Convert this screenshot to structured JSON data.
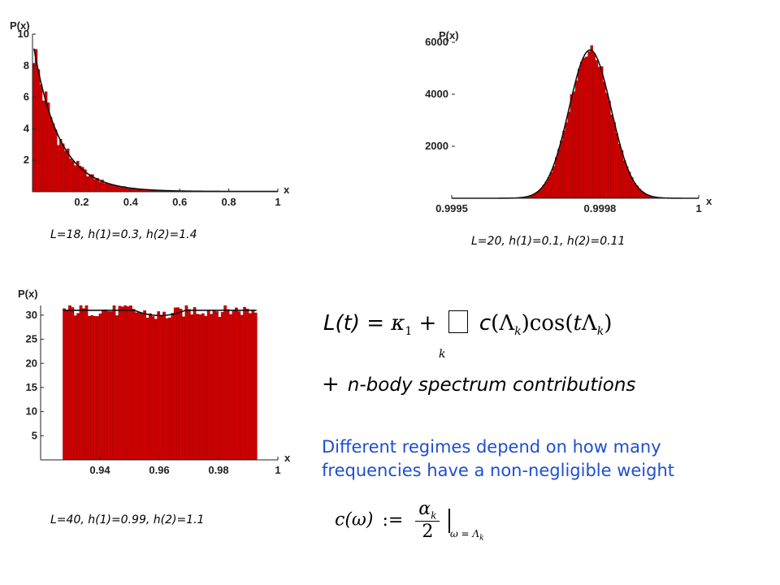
{
  "chart_data": [
    {
      "type": "bar",
      "ylabel": "P(x)",
      "xlabel": "x",
      "caption": "L=18, h(1)=0.3, h(2)=1.4",
      "xlim": [
        0.0,
        1.0
      ],
      "ylim": [
        0,
        10
      ],
      "xticks": [
        "0.2",
        "0.4",
        "0.6",
        "0.8",
        "1"
      ],
      "xtick_values": [
        0.2,
        0.4,
        0.6,
        0.8,
        1.0
      ],
      "yticks": [
        "2",
        "4",
        "6",
        "8",
        "10"
      ],
      "ytick_values": [
        2,
        4,
        6,
        8,
        10
      ],
      "curve": "decay"
    },
    {
      "type": "bar",
      "ylabel": "P(x)",
      "xlabel": "x",
      "caption": "L=20, h(1)=0.1, h(2)=0.11",
      "xlim": [
        0.9995,
        1.0
      ],
      "ylim": [
        0,
        6000
      ],
      "xticks": [
        "0.9995",
        "0.9998",
        "1"
      ],
      "xtick_values": [
        0.9995,
        0.9998,
        1.0
      ],
      "yticks": [
        "2000",
        "4000",
        "6000"
      ],
      "ytick_values": [
        2000,
        4000,
        6000
      ],
      "curve": "gaussian",
      "peak_x": 0.99978,
      "peak_y": 5700
    },
    {
      "type": "bar",
      "ylabel": "P(x)",
      "xlabel": "x",
      "caption": "L=40, h(1)=0.99, h(2)=1.1",
      "xlim": [
        0.92,
        1.0
      ],
      "ylim": [
        0,
        32
      ],
      "xticks": [
        "0.94",
        "0.96",
        "0.98",
        "1"
      ],
      "xtick_values": [
        0.94,
        0.96,
        0.98,
        1.0
      ],
      "yticks": [
        "5",
        "10",
        "15",
        "20",
        "25",
        "30"
      ],
      "ytick_values": [
        5,
        10,
        15,
        20,
        25,
        30
      ],
      "curve": "u-shape",
      "edges": [
        0.9275,
        0.993
      ]
    }
  ],
  "text": {
    "nbody_plus": "+",
    "nbody_text": "n-body spectrum contributions",
    "regimes_line1": "Different regimes depend on how many",
    "regimes_line2": "frequencies have a non-negligible weight"
  },
  "formula1": {
    "lhs": "L(t)",
    "eq": "=",
    "kappa": "κ",
    "kappa_sub": "1",
    "plus": "+",
    "c": "c",
    "lambda": "Λ",
    "lambda_sub": "k",
    "cos": "cos",
    "t": "t",
    "sum_index": "k"
  },
  "formula2": {
    "lhs": "c(ω)",
    "def": ":=",
    "num": "α",
    "num_sub": "k",
    "den": "2",
    "eval": "ω = Λ",
    "eval_sub": "k"
  },
  "colors": {
    "bar_fill": "#cc0000",
    "bar_edge": "#8a0000",
    "curve": "#111111",
    "regimes_text": "#1e4fd0"
  }
}
